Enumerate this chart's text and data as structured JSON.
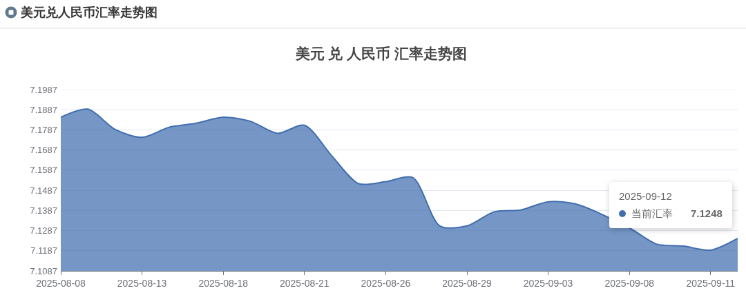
{
  "chart_data": {
    "type": "area",
    "title": "美元兑人民币汇率走势图",
    "subtitle": "美元 兑 人民币 汇率走势图",
    "categories": [
      "2025-08-08",
      null,
      null,
      "2025-08-13",
      null,
      null,
      "2025-08-18",
      null,
      null,
      "2025-08-21",
      null,
      null,
      "2025-08-26",
      null,
      null,
      "2025-08-29",
      null,
      null,
      "2025-09-03",
      null,
      null,
      "2025-09-08",
      null,
      null,
      "2025-09-11",
      null
    ],
    "series": [
      {
        "name": "当前汇率",
        "color": "#416eaf",
        "values": [
          7.185,
          7.189,
          7.179,
          7.175,
          7.18,
          7.182,
          7.185,
          7.183,
          7.177,
          7.181,
          7.166,
          7.152,
          7.153,
          7.155,
          7.131,
          7.131,
          7.138,
          7.139,
          7.143,
          7.142,
          null,
          7.13,
          7.122,
          7.121,
          7.119,
          7.1248
        ],
        "value_labels": [
          null,
          null,
          null,
          null,
          null,
          null,
          null,
          null,
          null,
          null,
          null,
          null,
          null,
          null,
          null,
          null,
          null,
          null,
          null,
          null,
          null,
          null,
          null,
          null,
          null,
          "7.1248"
        ]
      }
    ],
    "annotations": [
      "2025-09-12"
    ],
    "ylim": [
      7.1087,
      7.1987
    ],
    "yticks": [
      7.1087,
      7.1187,
      7.1287,
      7.1387,
      7.1487,
      7.1587,
      7.1687,
      7.1787,
      7.1887,
      7.1987
    ],
    "grid": "y"
  }
}
